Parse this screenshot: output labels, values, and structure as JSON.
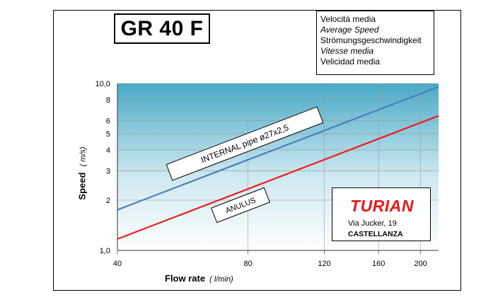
{
  "title": "GR 40 F",
  "speed_legend": [
    {
      "text": "Velocità media",
      "italic": false
    },
    {
      "text": "Average Speed",
      "italic": true
    },
    {
      "text": "Strömungsgeschwindigkeit",
      "italic": false
    },
    {
      "text": "Vitesse media",
      "italic": true
    },
    {
      "text": "Velicidad media",
      "italic": false
    }
  ],
  "company": {
    "name": "TURIAN",
    "address": "Via Jucker, 19",
    "city": "CASTELLANZA",
    "brand_color": "#e31a1c"
  },
  "chart_data": {
    "type": "line",
    "xlabel": "Flow rate",
    "xlabel_unit": "( l/min)",
    "ylabel": "Speed",
    "ylabel_unit": "( m/s)",
    "xscale": "log",
    "yscale": "log",
    "xlim": [
      40,
      220
    ],
    "ylim": [
      1,
      10
    ],
    "x_ticks": [
      40,
      80,
      120,
      160,
      200
    ],
    "y_ticks": [
      1,
      2,
      3,
      4,
      5,
      6,
      8,
      10
    ],
    "y_tick_labels": [
      "1,0",
      "2",
      "3",
      "4",
      "5",
      "6",
      "8",
      "10,0"
    ],
    "grid": "vertical at x ticks, horizontal at y ticks",
    "background": "gradient from #48aac6 at top to white at bottom",
    "series": [
      {
        "name": "INTERNAL  pipe ø27x2,5",
        "color": "#4a7ebb",
        "x": [
          40,
          220
        ],
        "y": [
          1.75,
          9.55
        ]
      },
      {
        "name": "ANULUS",
        "color": "#ee1c1c",
        "x": [
          40,
          220
        ],
        "y": [
          1.17,
          6.4
        ]
      }
    ]
  }
}
